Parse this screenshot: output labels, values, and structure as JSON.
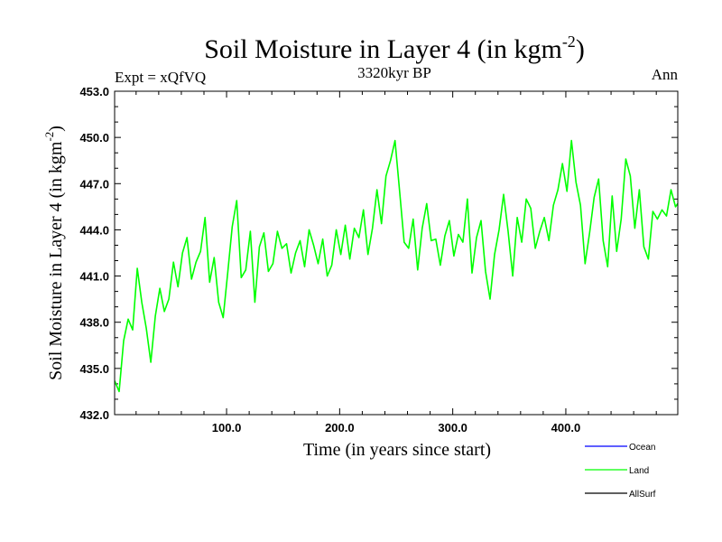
{
  "chart_data": {
    "type": "line",
    "title": "Soil Moisture in Layer 4 (in kgm",
    "title_sup": "-2",
    "title_close": ")",
    "subtitle_left": "Expt = xQfVQ",
    "subtitle_center": "3320kyr BP",
    "subtitle_right": "Ann",
    "xlabel": "Time (in years since start)",
    "ylabel": "Soil Moisture in Layer 4 (in kgm",
    "ylabel_sup": "-2",
    "ylabel_close": ")",
    "xlim": [
      1,
      499
    ],
    "ylim": [
      432.0,
      453.0
    ],
    "xticks": [
      100,
      200,
      300,
      400
    ],
    "xtick_labels": [
      "100.0",
      "200.0",
      "300.0",
      "400.0"
    ],
    "yticks": [
      432,
      435,
      438,
      441,
      444,
      447,
      450,
      453
    ],
    "ytick_labels": [
      "432.0",
      "435.0",
      "438.0",
      "441.0",
      "444.0",
      "447.0",
      "450.0",
      "453.0"
    ],
    "legend": [
      {
        "name": "Ocean",
        "color": "#0000ff"
      },
      {
        "name": "Land",
        "color": "#00ff00"
      },
      {
        "name": "AllSurf",
        "color": "#000000"
      }
    ],
    "series": [
      {
        "name": "Land",
        "color": "#00ff00",
        "x": [
          1,
          5,
          9,
          13,
          17,
          21,
          25,
          29,
          33,
          37,
          41,
          45,
          49,
          53,
          57,
          61,
          65,
          69,
          73,
          77,
          81,
          85,
          89,
          93,
          97,
          101,
          105,
          109,
          113,
          117,
          121,
          125,
          129,
          133,
          137,
          141,
          145,
          149,
          153,
          157,
          161,
          165,
          169,
          173,
          177,
          181,
          185,
          189,
          193,
          197,
          201,
          205,
          209,
          213,
          217,
          221,
          225,
          229,
          233,
          237,
          241,
          245,
          249,
          253,
          257,
          261,
          265,
          269,
          273,
          277,
          281,
          285,
          289,
          293,
          297,
          301,
          305,
          309,
          313,
          317,
          321,
          325,
          329,
          333,
          337,
          341,
          345,
          349,
          353,
          357,
          361,
          365,
          369,
          373,
          377,
          381,
          385,
          389,
          393,
          397,
          401,
          405,
          409,
          413,
          417,
          421,
          425,
          429,
          433,
          437,
          441,
          445,
          449,
          453,
          457,
          461,
          465,
          469,
          473,
          477,
          481,
          485,
          489,
          493,
          497,
          499
        ],
        "values": [
          434.2,
          433.5,
          436.8,
          438.2,
          437.5,
          441.5,
          439.3,
          437.6,
          435.4,
          438.4,
          440.2,
          438.7,
          439.5,
          441.9,
          440.3,
          442.5,
          443.5,
          440.8,
          441.9,
          442.6,
          444.8,
          440.6,
          442.2,
          439.3,
          438.3,
          441.2,
          444.2,
          445.9,
          440.9,
          441.4,
          443.9,
          439.3,
          442.9,
          443.8,
          441.3,
          441.8,
          443.9,
          442.8,
          443.1,
          441.2,
          442.5,
          443.3,
          441.6,
          444.0,
          443.0,
          441.8,
          443.4,
          441.0,
          441.7,
          444.0,
          442.4,
          444.3,
          442.1,
          444.1,
          443.5,
          445.3,
          442.4,
          444.1,
          446.6,
          444.4,
          447.5,
          448.5,
          449.8,
          446.5,
          443.2,
          442.8,
          444.7,
          441.4,
          444.1,
          445.7,
          443.3,
          443.4,
          441.7,
          443.6,
          444.6,
          442.3,
          443.7,
          443.2,
          446.0,
          441.2,
          443.5,
          444.6,
          441.3,
          439.5,
          442.4,
          444.0,
          446.3,
          443.9,
          441.0,
          444.8,
          443.2,
          446.0,
          445.4,
          442.8,
          443.9,
          444.8,
          443.3,
          445.6,
          446.6,
          448.3,
          446.5,
          449.8,
          447.1,
          445.6,
          441.8,
          443.8,
          446.1,
          447.3,
          443.3,
          441.6,
          446.2,
          442.6,
          444.7,
          448.6,
          447.5,
          444.1,
          446.6,
          442.9,
          442.1,
          445.2,
          444.7,
          445.3,
          444.9,
          446.6,
          445.5,
          445.7
        ]
      }
    ]
  }
}
